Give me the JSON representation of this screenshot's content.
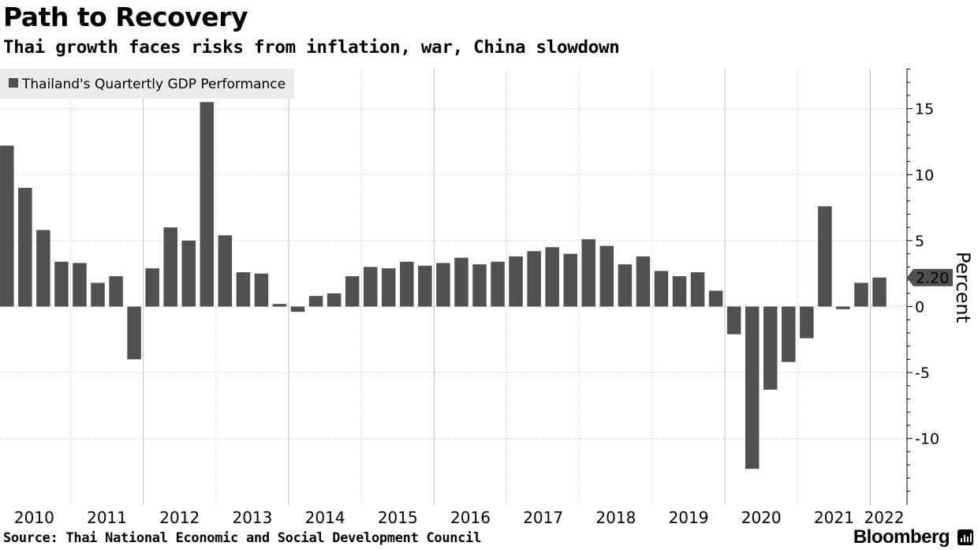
{
  "header": {
    "title": "Path to Recovery",
    "subtitle": "Thai growth faces risks from inflation, war, China slowdown"
  },
  "footer": {
    "source": "Source: Thai National Economic and Social Development Council",
    "brand": "Bloomberg"
  },
  "chart_data": {
    "type": "bar",
    "title": "Path to Recovery",
    "subtitle": "Thai growth faces risks from inflation, war, China slowdown",
    "xlabel": "",
    "ylabel": "Percent",
    "ylim": [
      -15,
      18
    ],
    "yticks": [
      -10,
      -5,
      0,
      5,
      10,
      15
    ],
    "ytick_labels": [
      "-10",
      "-5",
      "0",
      "5",
      "10",
      "15"
    ],
    "grid": true,
    "legend": {
      "placement": "top-left",
      "entries": [
        "Thailand's Quartertly GDP Performance"
      ]
    },
    "last_value_label": "2.20",
    "bar_color": "#505050",
    "year_labels": [
      "2010",
      "2011",
      "2012",
      "2013",
      "2014",
      "2015",
      "2016",
      "2017",
      "2018",
      "2019",
      "2020",
      "2021",
      "2022"
    ],
    "series": [
      {
        "name": "Thailand's Quartertly GDP Performance",
        "categories": [
          "2010 Q1",
          "2010 Q2",
          "2010 Q3",
          "2010 Q4",
          "2011 Q1",
          "2011 Q2",
          "2011 Q3",
          "2011 Q4",
          "2012 Q1",
          "2012 Q2",
          "2012 Q3",
          "2012 Q4",
          "2013 Q1",
          "2013 Q2",
          "2013 Q3",
          "2013 Q4",
          "2014 Q1",
          "2014 Q2",
          "2014 Q3",
          "2014 Q4",
          "2015 Q1",
          "2015 Q2",
          "2015 Q3",
          "2015 Q4",
          "2016 Q1",
          "2016 Q2",
          "2016 Q3",
          "2016 Q4",
          "2017 Q1",
          "2017 Q2",
          "2017 Q3",
          "2017 Q4",
          "2018 Q1",
          "2018 Q2",
          "2018 Q3",
          "2018 Q4",
          "2019 Q1",
          "2019 Q2",
          "2019 Q3",
          "2019 Q4",
          "2020 Q1",
          "2020 Q2",
          "2020 Q3",
          "2020 Q4",
          "2021 Q1",
          "2021 Q2",
          "2021 Q3",
          "2021 Q4",
          "2022 Q1"
        ],
        "values": [
          12.2,
          9.0,
          5.8,
          3.4,
          3.3,
          1.8,
          2.3,
          -4.0,
          2.9,
          6.0,
          5.0,
          15.5,
          5.4,
          2.6,
          2.5,
          0.2,
          -0.4,
          0.8,
          1.0,
          2.3,
          3.0,
          2.9,
          3.4,
          3.1,
          3.3,
          3.7,
          3.2,
          3.4,
          3.8,
          4.2,
          4.5,
          4.0,
          5.1,
          4.6,
          3.2,
          3.8,
          2.7,
          2.3,
          2.6,
          1.2,
          -2.1,
          -12.3,
          -6.3,
          -4.2,
          -2.4,
          7.6,
          -0.2,
          1.8,
          2.2
        ]
      }
    ]
  }
}
